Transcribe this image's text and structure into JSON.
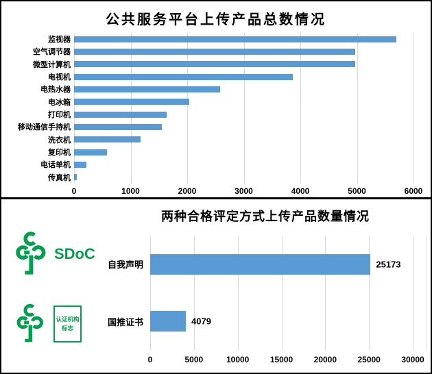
{
  "colors": {
    "bar_blue": "#5B9BD5",
    "gridline_gray": "#D9D9D9",
    "logo_green": "#00A14D",
    "text_black": "#000000"
  },
  "chart_data": [
    {
      "type": "bar",
      "orientation": "horizontal",
      "title": "公共服务平台上传产品总数情况",
      "categories": [
        "监视器",
        "空气调节器",
        "微型计算机",
        "电视机",
        "电热水器",
        "电冰箱",
        "打印机",
        "移动通信手持机",
        "洗衣机",
        "复印机",
        "电话单机",
        "传真机"
      ],
      "values": [
        5700,
        4970,
        4975,
        3870,
        2580,
        2040,
        1640,
        1550,
        1170,
        580,
        220,
        50
      ],
      "xlim": [
        0,
        6000
      ],
      "xticks": [
        "0",
        "1000",
        "2000",
        "3000",
        "4000",
        "5000",
        "6000"
      ],
      "xlabel": "",
      "ylabel": "",
      "grid": "vertical",
      "legend": "none",
      "show_value_labels": false,
      "bar_color": "#5B9BD5",
      "gridline_color": "#D9D9D9"
    },
    {
      "type": "bar",
      "orientation": "horizontal",
      "title": "两种合格评定方式上传产品数量情况",
      "categories": [
        "自我声明",
        "国推证书"
      ],
      "values": [
        25173,
        4079
      ],
      "value_labels": [
        "25173",
        "4079"
      ],
      "xlim": [
        0,
        30000
      ],
      "xticks": [
        "0",
        "5000",
        "10000",
        "15000",
        "20000",
        "25000",
        "30000"
      ],
      "xlabel": "",
      "ylabel": "",
      "grid": "vertical",
      "legend": "none",
      "show_value_labels": true,
      "bar_color": "#5B9BD5",
      "gridline_color": "#D9D9D9"
    }
  ],
  "logos": {
    "color": "#00A14D",
    "sdoc": {
      "text": "SDoC"
    },
    "cert": {
      "line1": "认证机构",
      "line2": "标志"
    }
  }
}
